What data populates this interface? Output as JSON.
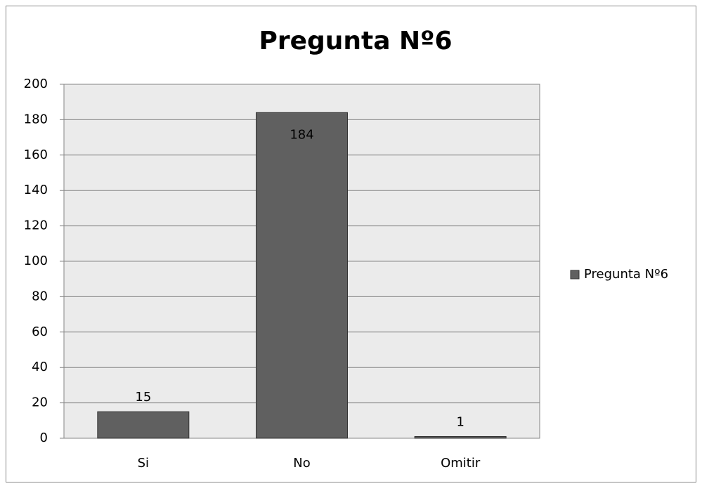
{
  "chart_data": {
    "type": "bar",
    "title": "Pregunta Nº6",
    "categories": [
      "Si",
      "No",
      "Omitir"
    ],
    "series": [
      {
        "name": "Pregunta Nº6",
        "color": "#606060",
        "values": [
          15,
          184,
          1
        ]
      }
    ],
    "ylim": [
      0,
      200
    ],
    "yticks": [
      0,
      20,
      40,
      60,
      80,
      100,
      120,
      140,
      160,
      180,
      200
    ],
    "grid": true,
    "legend": "right"
  }
}
